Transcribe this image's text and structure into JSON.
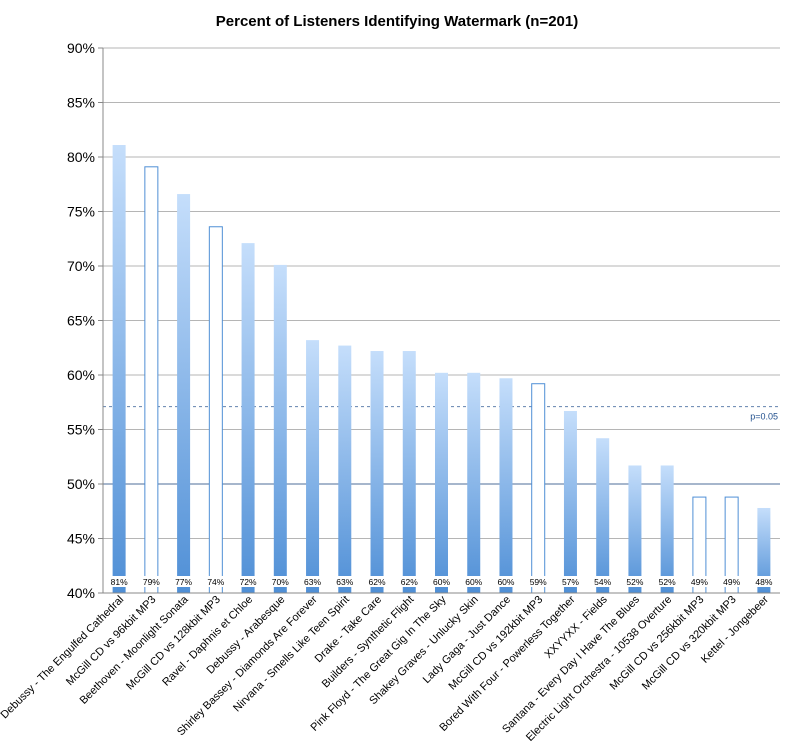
{
  "chart_data": {
    "type": "bar",
    "title": "Percent of Listeners Identifying Watermark (n=201)",
    "xlabel": "",
    "ylabel": "",
    "ylim": [
      40,
      90
    ],
    "yticks": [
      40,
      45,
      50,
      55,
      60,
      65,
      70,
      75,
      80,
      85,
      90
    ],
    "ytick_labels": [
      "40%",
      "45%",
      "50%",
      "55%",
      "60%",
      "65%",
      "70%",
      "75%",
      "80%",
      "85%",
      "90%"
    ],
    "grid": true,
    "categories": [
      "Debussy - The Engulfed Cathedral",
      "McGill CD vs 96kbit MP3",
      "Beethoven - Moonlight Sonata",
      "McGill CD vs 128kbit MP3",
      "Ravel - Daphnis et Chloe",
      "Debussy - Arabesque",
      "Shirley Bassey - Diamonds Are Forever",
      "Nirvana - Smells Like Teen Spirit",
      "Drake - Take Care",
      "Builders - Synthetic Flight",
      "Pink Floyd - The Great Gig In The Sky",
      "Shakey Graves - Unlucky Skin",
      "Lady Gaga - Just Dance",
      "McGill CD vs 192kbit MP3",
      "Bored With Four - Powerless Together",
      "XXYYXX - Fields",
      "Santana - Every Day I Have The Blues",
      "Electric Light Orchestra - 10538 Overture",
      "McGill CD vs 256kbit MP3",
      "McGill CD vs 320kbit MP3",
      "Kettel - Jongebeer"
    ],
    "values": [
      81.1,
      79.1,
      76.6,
      73.6,
      72.1,
      70.1,
      63.2,
      62.7,
      62.2,
      62.2,
      60.2,
      60.2,
      59.7,
      59.2,
      56.7,
      54.2,
      51.7,
      51.7,
      48.8,
      48.8,
      47.8
    ],
    "data_labels": [
      "81%",
      "79%",
      "77%",
      "74%",
      "72%",
      "70%",
      "63%",
      "63%",
      "62%",
      "62%",
      "60%",
      "60%",
      "60%",
      "59%",
      "57%",
      "54%",
      "52%",
      "52%",
      "49%",
      "49%",
      "48%"
    ],
    "bar_styles": [
      "filled",
      "outline",
      "filled",
      "outline",
      "filled",
      "filled",
      "filled",
      "filled",
      "filled",
      "filled",
      "filled",
      "filled",
      "filled",
      "outline",
      "filled",
      "filled",
      "filled",
      "filled",
      "outline",
      "outline",
      "filled"
    ],
    "reference_lines": [
      {
        "value": 57.1,
        "label": "p=0.05",
        "style": "dashed"
      },
      {
        "value": 50,
        "label": "",
        "style": "solid"
      }
    ],
    "colors": {
      "bar_top": "#c5defb",
      "bar_bottom": "#4f8fd6",
      "outline": "#4f8fd6",
      "grid": "#b5b5b5",
      "reference": "#1f4e8c"
    }
  }
}
